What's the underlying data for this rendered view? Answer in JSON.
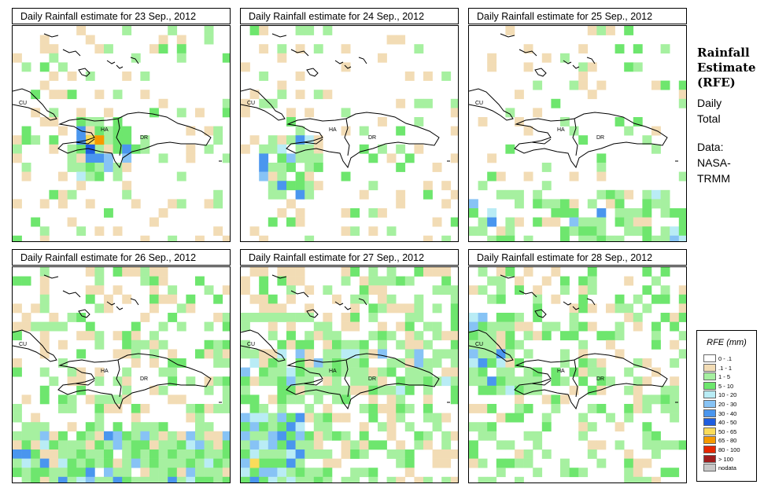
{
  "panels": [
    {
      "title": "Daily Rainfall estimate for  23 Sep., 2012",
      "labels": {
        "cu": "CU",
        "ha": "HA",
        "dr": "DR"
      }
    },
    {
      "title": "Daily Rainfall estimate for  24 Sep., 2012",
      "labels": {
        "cu": "CU",
        "ha": "HA",
        "dr": "DR"
      }
    },
    {
      "title": "Daily Rainfall estimate for  25 Sep., 2012",
      "labels": {
        "cu": "CU",
        "ha": "HA",
        "dr": "DR"
      }
    },
    {
      "title": "Daily Rainfall estimate for  26 Sep., 2012",
      "labels": {
        "cu": "CU",
        "ha": "HA",
        "dr": "DR"
      }
    },
    {
      "title": "Daily Rainfall estimate for  27 Sep., 2012",
      "labels": {
        "cu": "CU",
        "ha": "HA",
        "dr": "DR"
      }
    },
    {
      "title": "Daily Rainfall estimate for  28 Sep., 2012",
      "labels": {
        "cu": "CU",
        "ha": "HA",
        "dr": "DR"
      }
    }
  ],
  "side": {
    "heading1": "Rainfall",
    "heading2": "Estimate",
    "heading3": "(RFE)",
    "line1": "Daily",
    "line2": "Total",
    "line3": "Data:",
    "line4": "NASA-",
    "line5": "TRMM"
  },
  "legend": {
    "title": "RFE (mm)",
    "items": [
      {
        "label": "0 - .1",
        "color": "#ffffff"
      },
      {
        "label": ".1 - 1",
        "color": "#f2dcb5"
      },
      {
        "label": "1 - 5",
        "color": "#a6f0a0"
      },
      {
        "label": "5 - 10",
        "color": "#6ee66e"
      },
      {
        "label": "10 - 20",
        "color": "#b9ecf5"
      },
      {
        "label": "20 - 30",
        "color": "#87c3f5"
      },
      {
        "label": "30 - 40",
        "color": "#4a96ee"
      },
      {
        "label": "40 - 50",
        "color": "#1e5ee0"
      },
      {
        "label": "50 - 65",
        "color": "#fadc5a"
      },
      {
        "label": "65 - 80",
        "color": "#f59a00"
      },
      {
        "label": "80 - 100",
        "color": "#e62800"
      },
      {
        "label": "> 100",
        "color": "#a01e1e"
      },
      {
        "label": "nodata",
        "color": "#c8c8c8"
      }
    ]
  }
}
